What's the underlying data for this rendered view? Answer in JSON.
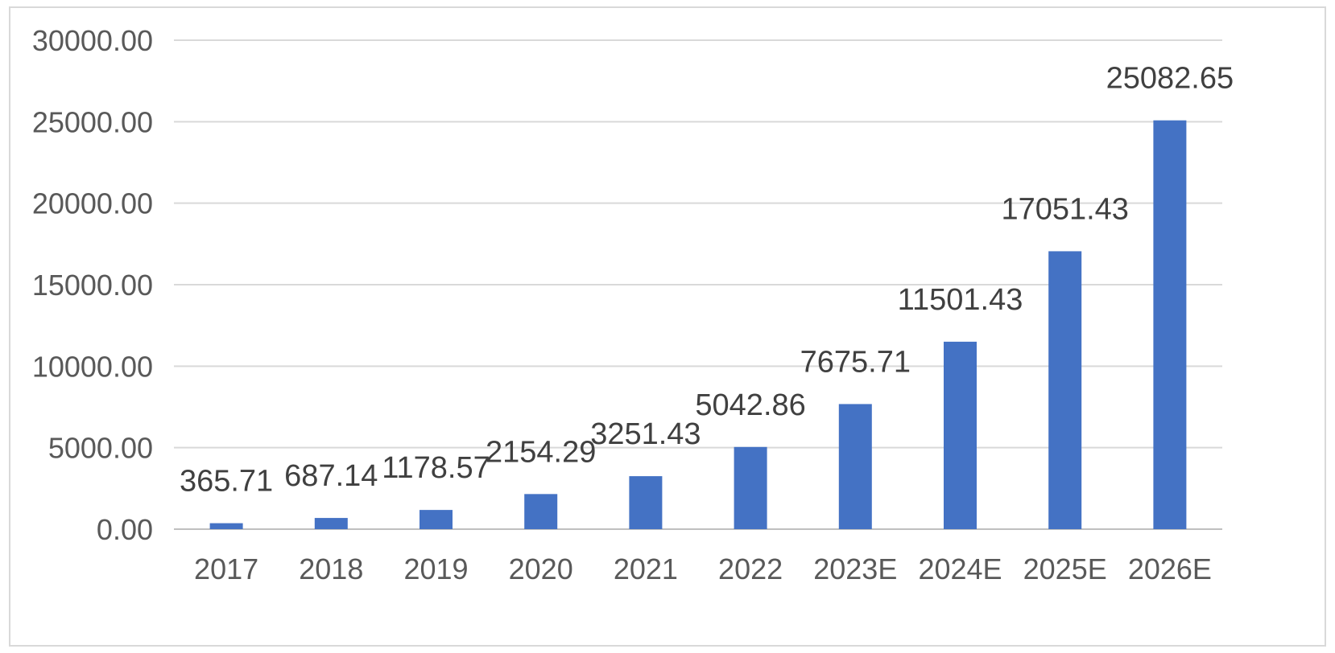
{
  "chart_data": {
    "type": "bar",
    "title": "",
    "xlabel": "",
    "ylabel": "",
    "categories": [
      "2017",
      "2018",
      "2019",
      "2020",
      "2021",
      "2022",
      "2023E",
      "2024E",
      "2025E",
      "2026E"
    ],
    "values": [
      365.71,
      687.14,
      1178.57,
      2154.29,
      3251.43,
      5042.86,
      7675.71,
      11501.43,
      17051.43,
      25082.65
    ],
    "data_labels": [
      "365.71",
      "687.14",
      "1178.57",
      "2154.29",
      "3251.43",
      "5042.86",
      "7675.71",
      "11501.43",
      "17051.43",
      "25082.65"
    ],
    "y_ticks": [
      "0.00",
      "5000.00",
      "10000.00",
      "15000.00",
      "20000.00",
      "25000.00",
      "30000.00"
    ],
    "ylim": [
      0,
      30000
    ],
    "grid": true,
    "legend": "none",
    "colors": {
      "bar": "#4472C4",
      "grid": "#d9d9d9",
      "axis": "#bfbfbf"
    }
  }
}
